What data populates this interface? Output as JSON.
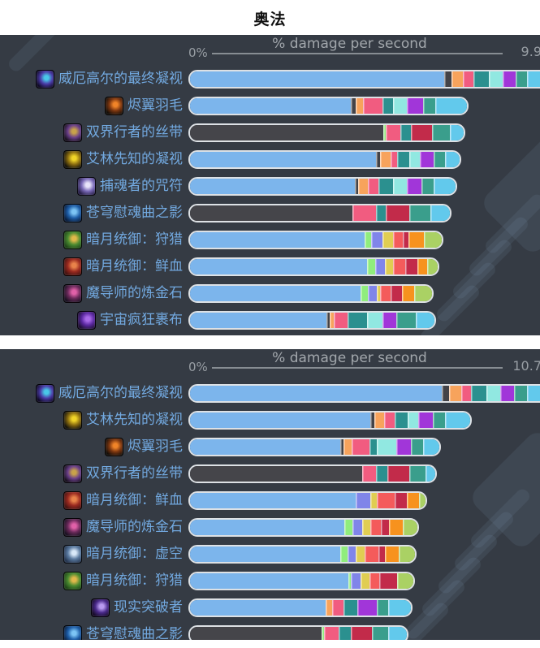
{
  "page": {
    "title": "奥法"
  },
  "palette": {
    "blue": "#7cb5ec",
    "darkfill": "#45454a",
    "dark": "#434348",
    "orange": "#f7a35c",
    "pink": "#f15c80",
    "teal": "#2b908f",
    "cyan": "#91e8e1",
    "purple": "#a136d9",
    "teal2": "#3a9e8c",
    "sky": "#62c9ec",
    "green": "#90ed7d",
    "periwinkle": "#8085e9",
    "yellow": "#e0cd52",
    "salmon": "#f45b5b",
    "crimson": "#c22b4a",
    "orange2": "#f7921e",
    "ygreen": "#aad164"
  },
  "colors": {
    "page_background": "#ffffff",
    "chart_background": "#353b44",
    "label_text": "#72a9e0",
    "axis_text": "#a2a7ac",
    "bar_border": "#dde1e5",
    "title_text": "#101010"
  },
  "icon_colors": {
    "weirgore-final-gaze-icon": [
      "#0d0822",
      "#4a3aa6",
      "#49c8e8"
    ],
    "ember-feather-icon": [
      "#120d08",
      "#7a3510",
      "#f08428"
    ],
    "twoworld-walker-ribbon-icon": [
      "#170f1d",
      "#6a3f8a",
      "#c8a24a"
    ],
    "areline-prophet-gaze-icon": [
      "#12100a",
      "#8a6c10",
      "#f0d428"
    ],
    "soulcatcher-charm-icon": [
      "#241c44",
      "#7a6ab8",
      "#e8e4fa"
    ],
    "sky-requiem-shadow-icon": [
      "#081c3c",
      "#1e5ea8",
      "#7cc4f4"
    ],
    "darkmoon-dominance-hunt-icon": [
      "#1e4418",
      "#4a8a30",
      "#e0b84a"
    ],
    "darkmoon-dominance-blood-icon": [
      "#441210",
      "#9a2a20",
      "#e8824a"
    ],
    "magister-alchemist-stone-icon": [
      "#170f1f",
      "#6a2a5a",
      "#e060a8"
    ],
    "cosmic-madness-wrap-icon": [
      "#1c0e30",
      "#5a28a0",
      "#a86ae8"
    ],
    "darkmoon-dominance-void-icon": [
      "#24344e",
      "#5a7aa0",
      "#d8e8f8"
    ],
    "reality-breaker-icon": [
      "#150a26",
      "#4a2a8a",
      "#b89af0"
    ]
  },
  "chart_data": [
    {
      "type": "bar",
      "orientation": "horizontal",
      "stacked": true,
      "title": "% damage per second",
      "xlabel": "% damage per second",
      "x_min_label": "0%",
      "x_max_label": "9.9",
      "xlim": [
        0,
        9.9
      ],
      "legend": "none",
      "grid": false,
      "categories": [
        "威厄高尔的最终凝视",
        "烬翼羽毛",
        "双界行者的丝带",
        "艾林先知的凝视",
        "捕魂者的咒符",
        "苍穹慰魂曲之影",
        "暗月统御：狩猎",
        "暗月统御：鲜血",
        "魔导师的炼金石",
        "宇宙疯狂裹布"
      ],
      "values": [
        9.9,
        8.2,
        8.1,
        7.9,
        7.8,
        7.6,
        7.4,
        7.3,
        7.1,
        7.2
      ],
      "note": "top bar clipped at right edge of image",
      "icons": [
        "weirgore-final-gaze-icon",
        "ember-feather-icon",
        "twoworld-walker-ribbon-icon",
        "areline-prophet-gaze-icon",
        "soulcatcher-charm-icon",
        "sky-requiem-shadow-icon",
        "darkmoon-dominance-hunt-icon",
        "darkmoon-dominance-blood-icon",
        "magister-alchemist-stone-icon",
        "cosmic-madness-wrap-icon"
      ],
      "bars": [
        [
          [
            "blue",
            313
          ],
          [
            "dark",
            9
          ],
          [
            "orange",
            14
          ],
          [
            "pink",
            13
          ],
          [
            "teal",
            19
          ],
          [
            "cyan",
            17
          ],
          [
            "purple",
            16
          ],
          [
            "teal2",
            14
          ],
          [
            "sky",
            40
          ]
        ],
        [
          [
            "blue",
            198
          ],
          [
            "dark",
            6
          ],
          [
            "orange",
            9
          ],
          [
            "pink",
            24
          ],
          [
            "teal",
            13
          ],
          [
            "cyan",
            17
          ],
          [
            "purple",
            20
          ],
          [
            "teal2",
            15
          ],
          [
            "sky",
            39
          ]
        ],
        [
          [
            "darkfill",
            238
          ],
          [
            "green",
            3
          ],
          [
            "pink",
            18
          ],
          [
            "teal",
            13
          ],
          [
            "crimson",
            26
          ],
          [
            "teal2",
            22
          ],
          [
            "sky",
            17
          ]
        ],
        [
          [
            "blue",
            229
          ],
          [
            "dark",
            5
          ],
          [
            "orange",
            13
          ],
          [
            "pink",
            8
          ],
          [
            "teal",
            15
          ],
          [
            "cyan",
            13
          ],
          [
            "purple",
            17
          ],
          [
            "teal2",
            14
          ],
          [
            "sky",
            18
          ]
        ],
        [
          [
            "blue",
            203
          ],
          [
            "dark",
            4
          ],
          [
            "orange",
            12
          ],
          [
            "pink",
            13
          ],
          [
            "teal",
            18
          ],
          [
            "cyan",
            17
          ],
          [
            "purple",
            18
          ],
          [
            "teal2",
            15
          ],
          [
            "sky",
            27
          ]
        ],
        [
          [
            "darkfill",
            200
          ],
          [
            "pink",
            29
          ],
          [
            "teal",
            12
          ],
          [
            "crimson",
            29
          ],
          [
            "teal2",
            26
          ],
          [
            "sky",
            24
          ]
        ],
        [
          [
            "blue",
            215
          ],
          [
            "green",
            8
          ],
          [
            "periwinkle",
            14
          ],
          [
            "yellow",
            13
          ],
          [
            "salmon",
            12
          ],
          [
            "crimson",
            7
          ],
          [
            "orange2",
            19
          ],
          [
            "ygreen",
            22
          ]
        ],
        [
          [
            "blue",
            218
          ],
          [
            "green",
            10
          ],
          [
            "periwinkle",
            12
          ],
          [
            "yellow",
            10
          ],
          [
            "salmon",
            15
          ],
          [
            "crimson",
            15
          ],
          [
            "orange2",
            12
          ],
          [
            "ygreen",
            13
          ]
        ],
        [
          [
            "blue",
            210
          ],
          [
            "green",
            9
          ],
          [
            "periwinkle",
            11
          ],
          [
            "yellow",
            4
          ],
          [
            "salmon",
            13
          ],
          [
            "crimson",
            14
          ],
          [
            "orange2",
            15
          ],
          [
            "ygreen",
            22
          ]
        ],
        [
          [
            "blue",
            168
          ],
          [
            "dark",
            4
          ],
          [
            "orange",
            5
          ],
          [
            "pink",
            17
          ],
          [
            "teal",
            24
          ],
          [
            "cyan",
            19
          ],
          [
            "purple",
            17
          ],
          [
            "teal2",
            24
          ],
          [
            "sky",
            23
          ]
        ]
      ]
    },
    {
      "type": "bar",
      "orientation": "horizontal",
      "stacked": true,
      "title": "% damage per second",
      "xlabel": "% damage per second",
      "x_min_label": "0%",
      "x_max_label": "10.7",
      "xlim": [
        0,
        10.7
      ],
      "legend": "none",
      "grid": false,
      "categories": [
        "威厄高尔的最终凝视",
        "艾林先知的凝视",
        "烬翼羽毛",
        "双界行者的丝带",
        "暗月统御：鲜血",
        "魔导师的炼金石",
        "暗月统御：虚空",
        "暗月统御：狩猎",
        "现实突破者",
        "苍穹慰魂曲之影"
      ],
      "values": [
        10.7,
        8.1,
        7.2,
        7.1,
        6.8,
        6.6,
        6.5,
        6.5,
        6.4,
        6.3
      ],
      "note": "top bar clipped at right edge; last row clipped at bottom of image",
      "icons": [
        "weirgore-final-gaze-icon",
        "areline-prophet-gaze-icon",
        "ember-feather-icon",
        "twoworld-walker-ribbon-icon",
        "darkmoon-dominance-blood-icon",
        "magister-alchemist-stone-icon",
        "darkmoon-dominance-void-icon",
        "darkmoon-dominance-hunt-icon",
        "reality-breaker-icon",
        "sky-requiem-shadow-icon"
      ],
      "bars": [
        [
          [
            "blue",
            310
          ],
          [
            "dark",
            9
          ],
          [
            "orange",
            15
          ],
          [
            "pink",
            12
          ],
          [
            "teal",
            19
          ],
          [
            "cyan",
            17
          ],
          [
            "purple",
            17
          ],
          [
            "teal2",
            16
          ],
          [
            "sky",
            40
          ]
        ],
        [
          [
            "blue",
            222
          ],
          [
            "dark",
            5
          ],
          [
            "orange",
            12
          ],
          [
            "pink",
            13
          ],
          [
            "teal",
            16
          ],
          [
            "cyan",
            13
          ],
          [
            "purple",
            18
          ],
          [
            "teal2",
            15
          ],
          [
            "sky",
            31
          ]
        ],
        [
          [
            "blue",
            185
          ],
          [
            "dark",
            4
          ],
          [
            "orange",
            10
          ],
          [
            "pink",
            22
          ],
          [
            "teal",
            9
          ],
          [
            "cyan",
            24
          ],
          [
            "purple",
            18
          ],
          [
            "teal2",
            15
          ],
          [
            "sky",
            20
          ]
        ],
        [
          [
            "darkfill",
            212
          ],
          [
            "pink",
            17
          ],
          [
            "teal",
            14
          ],
          [
            "crimson",
            27
          ],
          [
            "teal2",
            20
          ],
          [
            "sky",
            12
          ]
        ],
        [
          [
            "blue",
            204
          ],
          [
            "periwinkle",
            18
          ],
          [
            "yellow",
            8
          ],
          [
            "salmon",
            22
          ],
          [
            "crimson",
            15
          ],
          [
            "orange2",
            15
          ],
          [
            "ygreen",
            8
          ]
        ],
        [
          [
            "blue",
            190
          ],
          [
            "green",
            10
          ],
          [
            "periwinkle",
            12
          ],
          [
            "yellow",
            10
          ],
          [
            "salmon",
            13
          ],
          [
            "crimson",
            10
          ],
          [
            "orange2",
            17
          ],
          [
            "ygreen",
            18
          ]
        ],
        [
          [
            "blue",
            185
          ],
          [
            "green",
            9
          ],
          [
            "periwinkle",
            10
          ],
          [
            "yellow",
            11
          ],
          [
            "salmon",
            17
          ],
          [
            "crimson",
            8
          ],
          [
            "orange2",
            17
          ],
          [
            "ygreen",
            20
          ]
        ],
        [
          [
            "blue",
            195
          ],
          [
            "green",
            3
          ],
          [
            "periwinkle",
            12
          ],
          [
            "yellow",
            11
          ],
          [
            "salmon",
            12
          ],
          [
            "crimson",
            22
          ],
          [
            "ygreen",
            20
          ]
        ],
        [
          [
            "blue",
            167
          ],
          [
            "orange",
            8
          ],
          [
            "pink",
            14
          ],
          [
            "teal",
            17
          ],
          [
            "purple",
            24
          ],
          [
            "teal2",
            14
          ],
          [
            "sky",
            28
          ]
        ],
        [
          [
            "darkfill",
            162
          ],
          [
            "green",
            3
          ],
          [
            "pink",
            18
          ],
          [
            "teal",
            15
          ],
          [
            "crimson",
            26
          ],
          [
            "teal2",
            20
          ],
          [
            "sky",
            23
          ]
        ]
      ]
    }
  ]
}
